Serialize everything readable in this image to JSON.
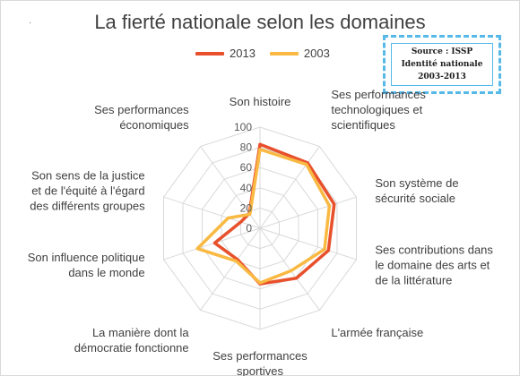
{
  "chart_data": {
    "type": "radar",
    "title": "La fierté nationale selon les domaines",
    "axes": [
      "Son histoire",
      "Ses performances technologiques et scientifiques",
      "Son système de sécurité sociale",
      "Ses contributions dans le domaine des arts et de la littérature",
      "L'armée française",
      "Ses performances sportives",
      "La manière dont la démocratie fonctionne",
      "Son influence politique dans le monde",
      "Son sens de la justice et de l'équité à l'égard des différents groupes",
      "Ses performances économiques"
    ],
    "axis_label_lines": [
      [
        "Son histoire"
      ],
      [
        "Ses performances",
        "technologiques et",
        "scientifiques"
      ],
      [
        "Son système de",
        "sécurité sociale"
      ],
      [
        "Ses contributions dans",
        "le domaine des arts et",
        "de la littérature"
      ],
      [
        "L'armée française"
      ],
      [
        "Ses performances",
        "sportives"
      ],
      [
        "La manière dont la",
        "démocratie fonctionne"
      ],
      [
        "Son influence politique",
        "dans le monde"
      ],
      [
        "Son sens de la justice",
        "et de l'équité à l'égard",
        "des différents groupes"
      ],
      [
        "Ses performances",
        "économiques"
      ]
    ],
    "r_ticks": [
      "0",
      "20",
      "40",
      "60",
      "80",
      "100"
    ],
    "rlim": [
      0,
      100
    ],
    "legend_position": "top",
    "series": [
      {
        "name": "2013",
        "color": "#e8502c",
        "values": [
          83,
          80,
          77,
          71,
          61,
          55,
          38,
          47,
          20,
          18
        ]
      },
      {
        "name": "2003",
        "color": "#f9b942",
        "values": [
          78,
          78,
          72,
          67,
          52,
          54,
          40,
          65,
          33,
          17
        ]
      }
    ]
  },
  "stamp": {
    "lines": [
      "Source : ISSP",
      "Identité nationale",
      "2003-2013"
    ]
  },
  "decor": {
    "dot": "·"
  }
}
